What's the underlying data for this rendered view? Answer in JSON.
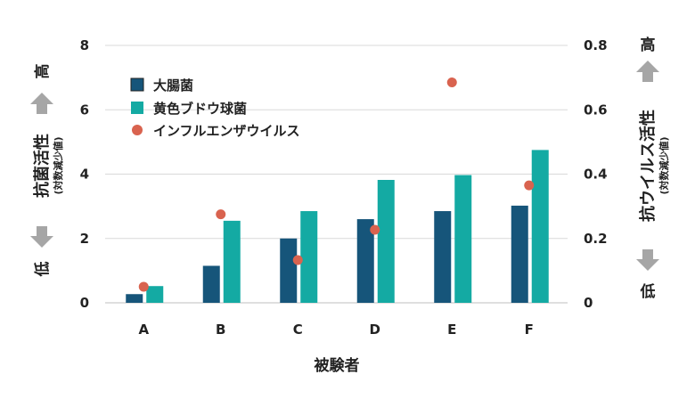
{
  "chart_data": {
    "type": "bar",
    "categories": [
      "A",
      "B",
      "C",
      "D",
      "E",
      "F"
    ],
    "xlabel": "被験者",
    "left_axis": {
      "label": "抗菌活性",
      "sublabel": "(対数減少値)",
      "high_label": "高",
      "low_label": "低",
      "ylim": [
        0,
        8
      ],
      "ticks": [
        "0",
        "2",
        "4",
        "6",
        "8"
      ]
    },
    "right_axis": {
      "label": "抗ウイルス活性",
      "sublabel": "(対数減少値)",
      "high_label": "高",
      "low_label": "低",
      "ylim": [
        0,
        0.8
      ],
      "ticks": [
        "0",
        "0.2",
        "0.4",
        "0.6",
        "0.8"
      ]
    },
    "series": [
      {
        "name": "大腸菌",
        "type": "bar",
        "axis": "left",
        "color": "#16557a",
        "values": [
          0.27,
          1.15,
          2.0,
          2.6,
          2.85,
          3.02
        ]
      },
      {
        "name": "黄色ブドウ球菌",
        "type": "bar",
        "axis": "left",
        "color": "#14aaa3",
        "values": [
          0.52,
          2.55,
          2.85,
          3.82,
          3.97,
          4.75
        ]
      },
      {
        "name": "インフルエンザウイルス",
        "type": "scatter",
        "axis": "right",
        "color": "#d9634f",
        "values": [
          0.05,
          0.275,
          0.133,
          0.227,
          0.685,
          0.365
        ]
      }
    ],
    "legend_position": "top-left",
    "grid": true,
    "arrow_color": "#a6a6a6"
  }
}
